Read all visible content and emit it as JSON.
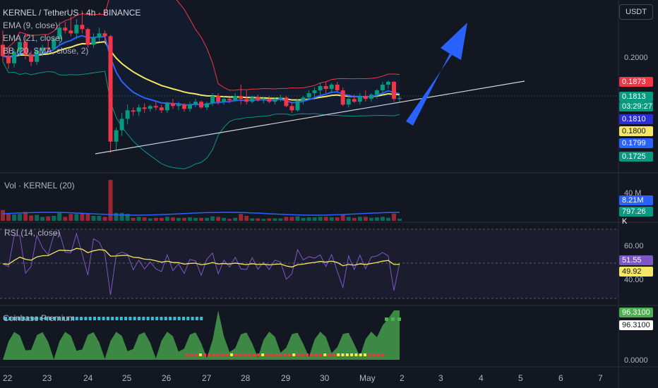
{
  "header": {
    "title": "KERNEL / TetherUS · 4h · BINANCE",
    "indicators": [
      "EMA (9, close)",
      "EMA (21, close)",
      "BB (20, SMA, close, 2)"
    ],
    "currency_button": "USDT"
  },
  "price_axis": {
    "ticks": [
      "0.2000"
    ],
    "badges": [
      {
        "text": "0.1873",
        "bg": "#f23645",
        "fg": "#ffffff"
      },
      {
        "text": "0.1813",
        "bg": "#089981",
        "fg": "#ffffff"
      },
      {
        "text": "03:29:27",
        "bg": "#089981",
        "fg": "#ffffff"
      },
      {
        "text": "0.1810",
        "bg": "#2a2ed3",
        "fg": "#ffffff"
      },
      {
        "text": "0.1800",
        "bg": "#f5e663",
        "fg": "#131722"
      },
      {
        "text": "0.1799",
        "bg": "#2962ff",
        "fg": "#ffffff"
      },
      {
        "text": "0.1725",
        "bg": "#089981",
        "fg": "#ffffff"
      }
    ]
  },
  "volume_pane": {
    "title": "Vol · KERNEL (20)",
    "ticks": [
      "40 M"
    ],
    "badges": [
      {
        "text": "8.21M",
        "bg": "#2962ff",
        "fg": "#ffffff"
      },
      {
        "text": "797.26 K",
        "bg": "#089981",
        "fg": "#ffffff"
      }
    ]
  },
  "rsi_pane": {
    "title": "RSI (14, close)",
    "ticks": [
      "60.00",
      "40.00"
    ],
    "badges": [
      {
        "text": "51.55",
        "bg": "#7e57c2",
        "fg": "#ffffff"
      },
      {
        "text": "49.92",
        "bg": "#f5e663",
        "fg": "#131722"
      }
    ]
  },
  "premium_pane": {
    "title": "Coinbase Premium",
    "ticks": [
      "0.0000"
    ],
    "badges": [
      {
        "text": "96.3100",
        "bg": "#4caf50",
        "fg": "#ffffff"
      },
      {
        "text": "96.3100",
        "bg": "#ffffff",
        "fg": "#131722"
      }
    ]
  },
  "time_axis": {
    "labels": [
      "22",
      "23",
      "24",
      "25",
      "26",
      "27",
      "28",
      "29",
      "30",
      "May",
      "2",
      "3",
      "4",
      "5",
      "6",
      "7"
    ]
  },
  "colors": {
    "background": "#131722",
    "up": "#089981",
    "down": "#f23645",
    "ema9": "#2962ff",
    "ema21": "#f5e663",
    "bb_upper": "#f23645",
    "bb_lower": "#089981",
    "rsi": "#7e57c2",
    "arrow": "#2962ff"
  },
  "chart_data": {
    "type": "candlestick",
    "symbol": "KERNEL / TetherUS",
    "interval": "4h",
    "exchange": "BINANCE",
    "close_last": 0.1813,
    "candles": [
      [
        0.2,
        0.205,
        0.194,
        0.196
      ],
      [
        0.196,
        0.199,
        0.1915,
        0.1935
      ],
      [
        0.1935,
        0.1985,
        0.192,
        0.1975
      ],
      [
        0.1975,
        0.203,
        0.196,
        0.201
      ],
      [
        0.201,
        0.204,
        0.195,
        0.1965
      ],
      [
        0.1965,
        0.198,
        0.1925,
        0.194
      ],
      [
        0.194,
        0.199,
        0.193,
        0.198
      ],
      [
        0.198,
        0.2,
        0.196,
        0.199
      ],
      [
        0.199,
        0.202,
        0.1975,
        0.1985
      ],
      [
        0.1985,
        0.203,
        0.198,
        0.202
      ],
      [
        0.202,
        0.208,
        0.2,
        0.206
      ],
      [
        0.206,
        0.208,
        0.204,
        0.205
      ],
      [
        0.205,
        0.21,
        0.203,
        0.204
      ],
      [
        0.204,
        0.209,
        0.202,
        0.207
      ],
      [
        0.207,
        0.212,
        0.204,
        0.2055
      ],
      [
        0.2055,
        0.206,
        0.199,
        0.2
      ],
      [
        0.2,
        0.204,
        0.199,
        0.2025
      ],
      [
        0.2025,
        0.206,
        0.201,
        0.204
      ],
      [
        0.204,
        0.205,
        0.201,
        0.203
      ],
      [
        0.203,
        0.2035,
        0.162,
        0.166
      ],
      [
        0.166,
        0.171,
        0.163,
        0.17
      ],
      [
        0.17,
        0.176,
        0.168,
        0.174
      ],
      [
        0.174,
        0.179,
        0.172,
        0.177
      ],
      [
        0.177,
        0.178,
        0.175,
        0.1765
      ],
      [
        0.1765,
        0.179,
        0.175,
        0.178
      ],
      [
        0.178,
        0.1795,
        0.176,
        0.1775
      ],
      [
        0.1775,
        0.179,
        0.1765,
        0.1785
      ],
      [
        0.1785,
        0.18,
        0.177,
        0.178
      ],
      [
        0.178,
        0.179,
        0.176,
        0.177
      ],
      [
        0.177,
        0.18,
        0.176,
        0.1795
      ],
      [
        0.1795,
        0.181,
        0.1775,
        0.1785
      ],
      [
        0.1785,
        0.18,
        0.177,
        0.179
      ],
      [
        0.179,
        0.1795,
        0.1765,
        0.1775
      ],
      [
        0.1775,
        0.18,
        0.1765,
        0.179
      ],
      [
        0.179,
        0.181,
        0.178,
        0.18
      ],
      [
        0.18,
        0.1805,
        0.1775,
        0.178
      ],
      [
        0.178,
        0.18,
        0.177,
        0.1795
      ],
      [
        0.1795,
        0.183,
        0.1785,
        0.182
      ],
      [
        0.182,
        0.183,
        0.179,
        0.18
      ],
      [
        0.18,
        0.182,
        0.179,
        0.181
      ],
      [
        0.181,
        0.1815,
        0.1795,
        0.1805
      ],
      [
        0.1805,
        0.183,
        0.18,
        0.182
      ],
      [
        0.182,
        0.186,
        0.179,
        0.181
      ],
      [
        0.181,
        0.184,
        0.179,
        0.18
      ],
      [
        0.18,
        0.182,
        0.1795,
        0.1815
      ],
      [
        0.1815,
        0.1825,
        0.18,
        0.1805
      ],
      [
        0.1805,
        0.1815,
        0.1795,
        0.181
      ],
      [
        0.181,
        0.182,
        0.1795,
        0.18
      ],
      [
        0.18,
        0.1815,
        0.179,
        0.181
      ],
      [
        0.181,
        0.1825,
        0.18,
        0.1815
      ],
      [
        0.1815,
        0.182,
        0.178,
        0.1785
      ],
      [
        0.1785,
        0.18,
        0.176,
        0.177
      ],
      [
        0.177,
        0.181,
        0.1765,
        0.1805
      ],
      [
        0.1805,
        0.182,
        0.179,
        0.1815
      ],
      [
        0.1815,
        0.184,
        0.1805,
        0.183
      ],
      [
        0.183,
        0.185,
        0.1815,
        0.184
      ],
      [
        0.184,
        0.1865,
        0.1825,
        0.1855
      ],
      [
        0.1855,
        0.187,
        0.183,
        0.1845
      ],
      [
        0.1845,
        0.1865,
        0.183,
        0.186
      ],
      [
        0.186,
        0.187,
        0.1835,
        0.184
      ],
      [
        0.184,
        0.185,
        0.1785,
        0.179
      ],
      [
        0.179,
        0.182,
        0.178,
        0.181
      ],
      [
        0.181,
        0.1825,
        0.1795,
        0.18
      ],
      [
        0.18,
        0.183,
        0.179,
        0.182
      ],
      [
        0.182,
        0.184,
        0.18,
        0.181
      ],
      [
        0.181,
        0.183,
        0.18,
        0.1825
      ],
      [
        0.1825,
        0.1845,
        0.181,
        0.184
      ],
      [
        0.184,
        0.187,
        0.183,
        0.186
      ],
      [
        0.186,
        0.1875,
        0.1845,
        0.187
      ],
      [
        0.187,
        0.1873,
        0.18,
        0.181
      ],
      [
        0.181,
        0.182,
        0.18,
        0.1813
      ]
    ],
    "volume_ma_last": 8210000,
    "volume_last": 797260,
    "rsi_last": 51.55,
    "rsi_ma_last": 49.92,
    "coinbase_premium_last": 96.31,
    "rsi_ylim": [
      30,
      70
    ],
    "price_levels": {
      "bb_upper": 0.1873,
      "ema9": 0.181,
      "ema21": 0.18,
      "bb_basis": 0.1799,
      "bb_lower": 0.1725
    }
  }
}
